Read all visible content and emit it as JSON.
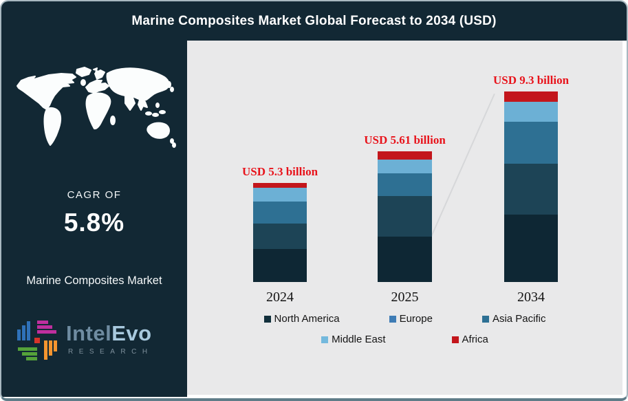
{
  "header": {
    "title": "Marine Composites Market Global Forecast to 2034 (USD)"
  },
  "sidebar": {
    "cagr_label": "CAGR OF",
    "cagr_value": "5.8%",
    "market_name": "Marine Composites Market",
    "logo": {
      "wordmark_primary": "Intel",
      "wordmark_secondary": "Evo",
      "subtitle": "RESEARCH"
    }
  },
  "colors": {
    "panel_dark": "#122834",
    "chart_bg": "#e9e9ea",
    "value_label_red": "#e8131b"
  },
  "chart_data": {
    "type": "bar",
    "stacked": true,
    "title": "Marine Composites Market Global Forecast to 2034 (USD)",
    "unit": "USD billion",
    "categories": [
      "2024",
      "2025",
      "2034"
    ],
    "totals": [
      5.3,
      5.61,
      9.3
    ],
    "total_labels": [
      "USD 5.3 billion",
      "USD 5.61 billion",
      "USD 9.3 billion"
    ],
    "series": [
      {
        "name": "North America",
        "color": "#0e2734",
        "values": [
          1.77,
          1.95,
          3.29
        ]
      },
      {
        "name": "Europe",
        "color": "#1d4456",
        "values": [
          1.36,
          1.74,
          2.48
        ]
      },
      {
        "name": "Asia Pacific",
        "color": "#2e7093",
        "values": [
          1.18,
          0.97,
          2.05
        ]
      },
      {
        "name": "Middle East",
        "color": "#6cb0d5",
        "values": [
          0.74,
          0.59,
          0.97
        ]
      },
      {
        "name": "Africa",
        "color": "#c3161c",
        "values": [
          0.26,
          0.35,
          0.5
        ]
      }
    ],
    "legend": [
      {
        "label": "North America",
        "color": "#12303c"
      },
      {
        "label": "Europe",
        "color": "#3e7cb5"
      },
      {
        "label": "Asia Pacific",
        "color": "#2d7094"
      },
      {
        "label": "Middle East",
        "color": "#74b9dd"
      },
      {
        "label": "Africa",
        "color": "#c3161c"
      }
    ],
    "legend_rows": [
      3,
      2
    ],
    "axis": {
      "x_labels": [
        "2024",
        "2025",
        "2034"
      ],
      "y_axis_visible": false,
      "gridlines": false
    },
    "annotations": [
      "growth trend line from 2025 bar toward top of 2034 bar"
    ]
  }
}
